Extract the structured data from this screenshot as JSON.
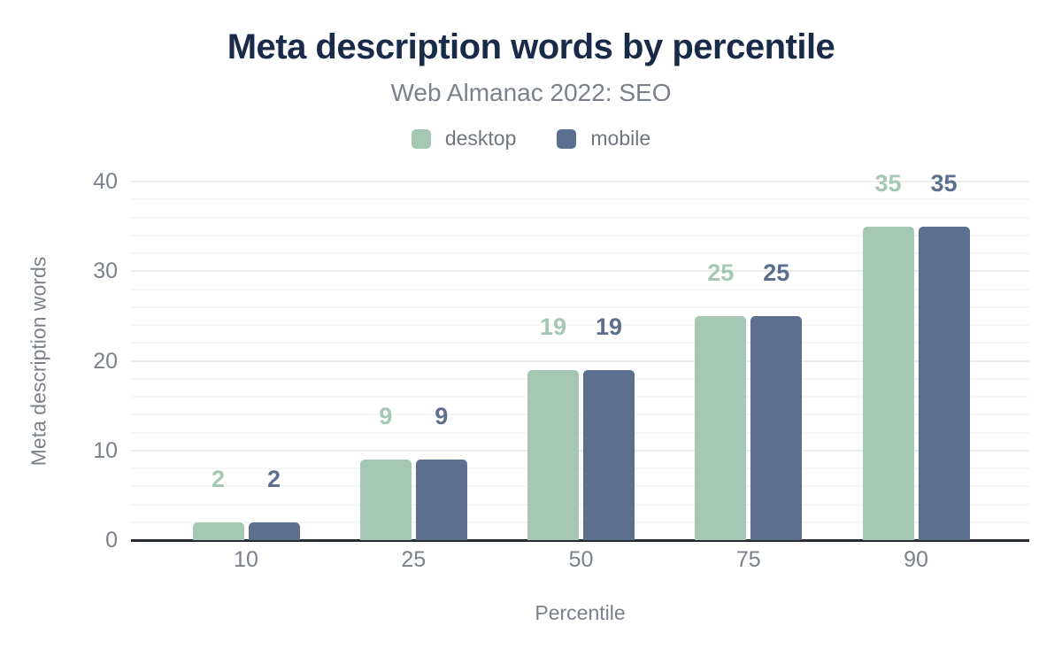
{
  "chart_data": {
    "type": "bar",
    "title": "Meta description words by percentile",
    "subtitle": "Web Almanac 2022: SEO",
    "xlabel": "Percentile",
    "ylabel": "Meta description words",
    "categories": [
      "10",
      "25",
      "50",
      "75",
      "90"
    ],
    "series": [
      {
        "name": "desktop",
        "color": "#a5c8b5",
        "values": [
          2,
          9,
          19,
          25,
          35
        ]
      },
      {
        "name": "mobile",
        "color": "#5c6f8f",
        "values": [
          2,
          9,
          19,
          25,
          35
        ]
      }
    ],
    "ylim": [
      0,
      40
    ],
    "yticks": [
      0,
      10,
      20,
      30,
      40
    ],
    "minor_grid_step": 2,
    "grid": "on",
    "legend_position": "top",
    "data_labels": "above-bars"
  },
  "colors": {
    "title_text": "#1a2b49",
    "muted_text": "#7b818a",
    "axis_line": "#272b33",
    "grid_minor": "#f6f6f6",
    "grid_major": "#ececec",
    "background": "#ffffff"
  }
}
